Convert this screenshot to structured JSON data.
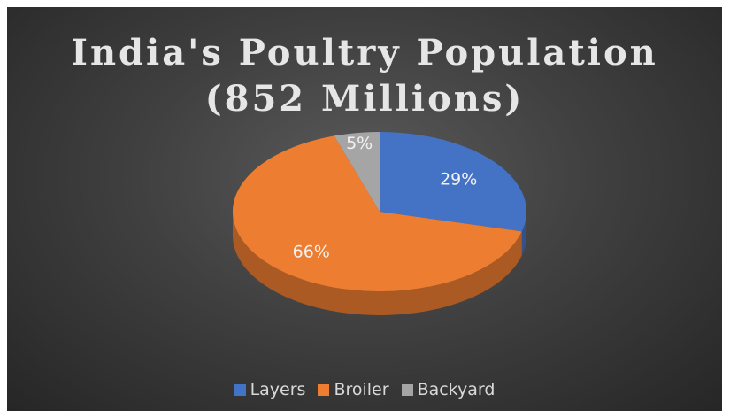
{
  "chart_data": {
    "type": "pie",
    "title": "India's Poultry Population (852 Millions)",
    "title_lines": [
      "India's Poultry Population",
      "(852 Millions)"
    ],
    "categories": [
      "Layers",
      "Broiler",
      "Backyard"
    ],
    "values": [
      29,
      66,
      5
    ],
    "labels": [
      "29%",
      "66%",
      "5%"
    ],
    "colors": [
      "#4472C4",
      "#ED7D31",
      "#A5A5A5"
    ],
    "legend_position": "bottom",
    "style": "3d"
  }
}
